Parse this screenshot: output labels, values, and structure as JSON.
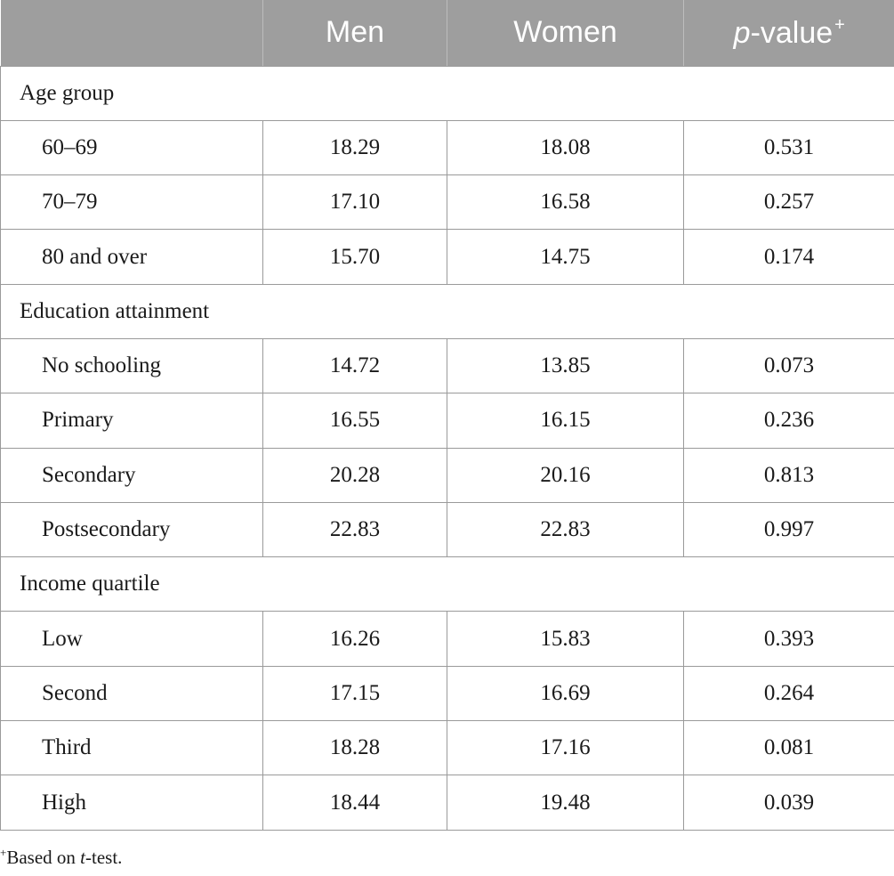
{
  "table": {
    "headers": {
      "col0": "",
      "men": "Men",
      "women": "Women",
      "pvalue_italic": "p",
      "pvalue_rest": "-value",
      "pvalue_sup": "+"
    },
    "groups": [
      {
        "label": "Age group",
        "rows": [
          {
            "label": "60–69",
            "men": "18.29",
            "women": "18.08",
            "p": "0.531"
          },
          {
            "label": "70–79",
            "men": "17.10",
            "women": "16.58",
            "p": "0.257"
          },
          {
            "label": "80 and over",
            "men": "15.70",
            "women": "14.75",
            "p": "0.174"
          }
        ]
      },
      {
        "label": "Education attainment",
        "rows": [
          {
            "label": "No schooling",
            "men": "14.72",
            "women": "13.85",
            "p": "0.073"
          },
          {
            "label": "Primary",
            "men": "16.55",
            "women": "16.15",
            "p": "0.236"
          },
          {
            "label": "Secondary",
            "men": "20.28",
            "women": "20.16",
            "p": "0.813"
          },
          {
            "label": "Postsecondary",
            "men": "22.83",
            "women": "22.83",
            "p": "0.997"
          }
        ]
      },
      {
        "label": "Income quartile",
        "rows": [
          {
            "label": "Low",
            "men": "16.26",
            "women": "15.83",
            "p": "0.393"
          },
          {
            "label": "Second",
            "men": "17.15",
            "women": "16.69",
            "p": "0.264"
          },
          {
            "label": "Third",
            "men": "18.28",
            "women": "17.16",
            "p": "0.081"
          },
          {
            "label": "High",
            "men": "18.44",
            "women": "19.48",
            "p": "0.039"
          }
        ]
      }
    ]
  },
  "footnote": {
    "sup": "+",
    "text_before": "Based on ",
    "italic": "t",
    "text_after": "-test."
  },
  "colors": {
    "header_bg": "#9e9e9e",
    "header_text": "#ffffff",
    "border": "#9a9a9a"
  }
}
